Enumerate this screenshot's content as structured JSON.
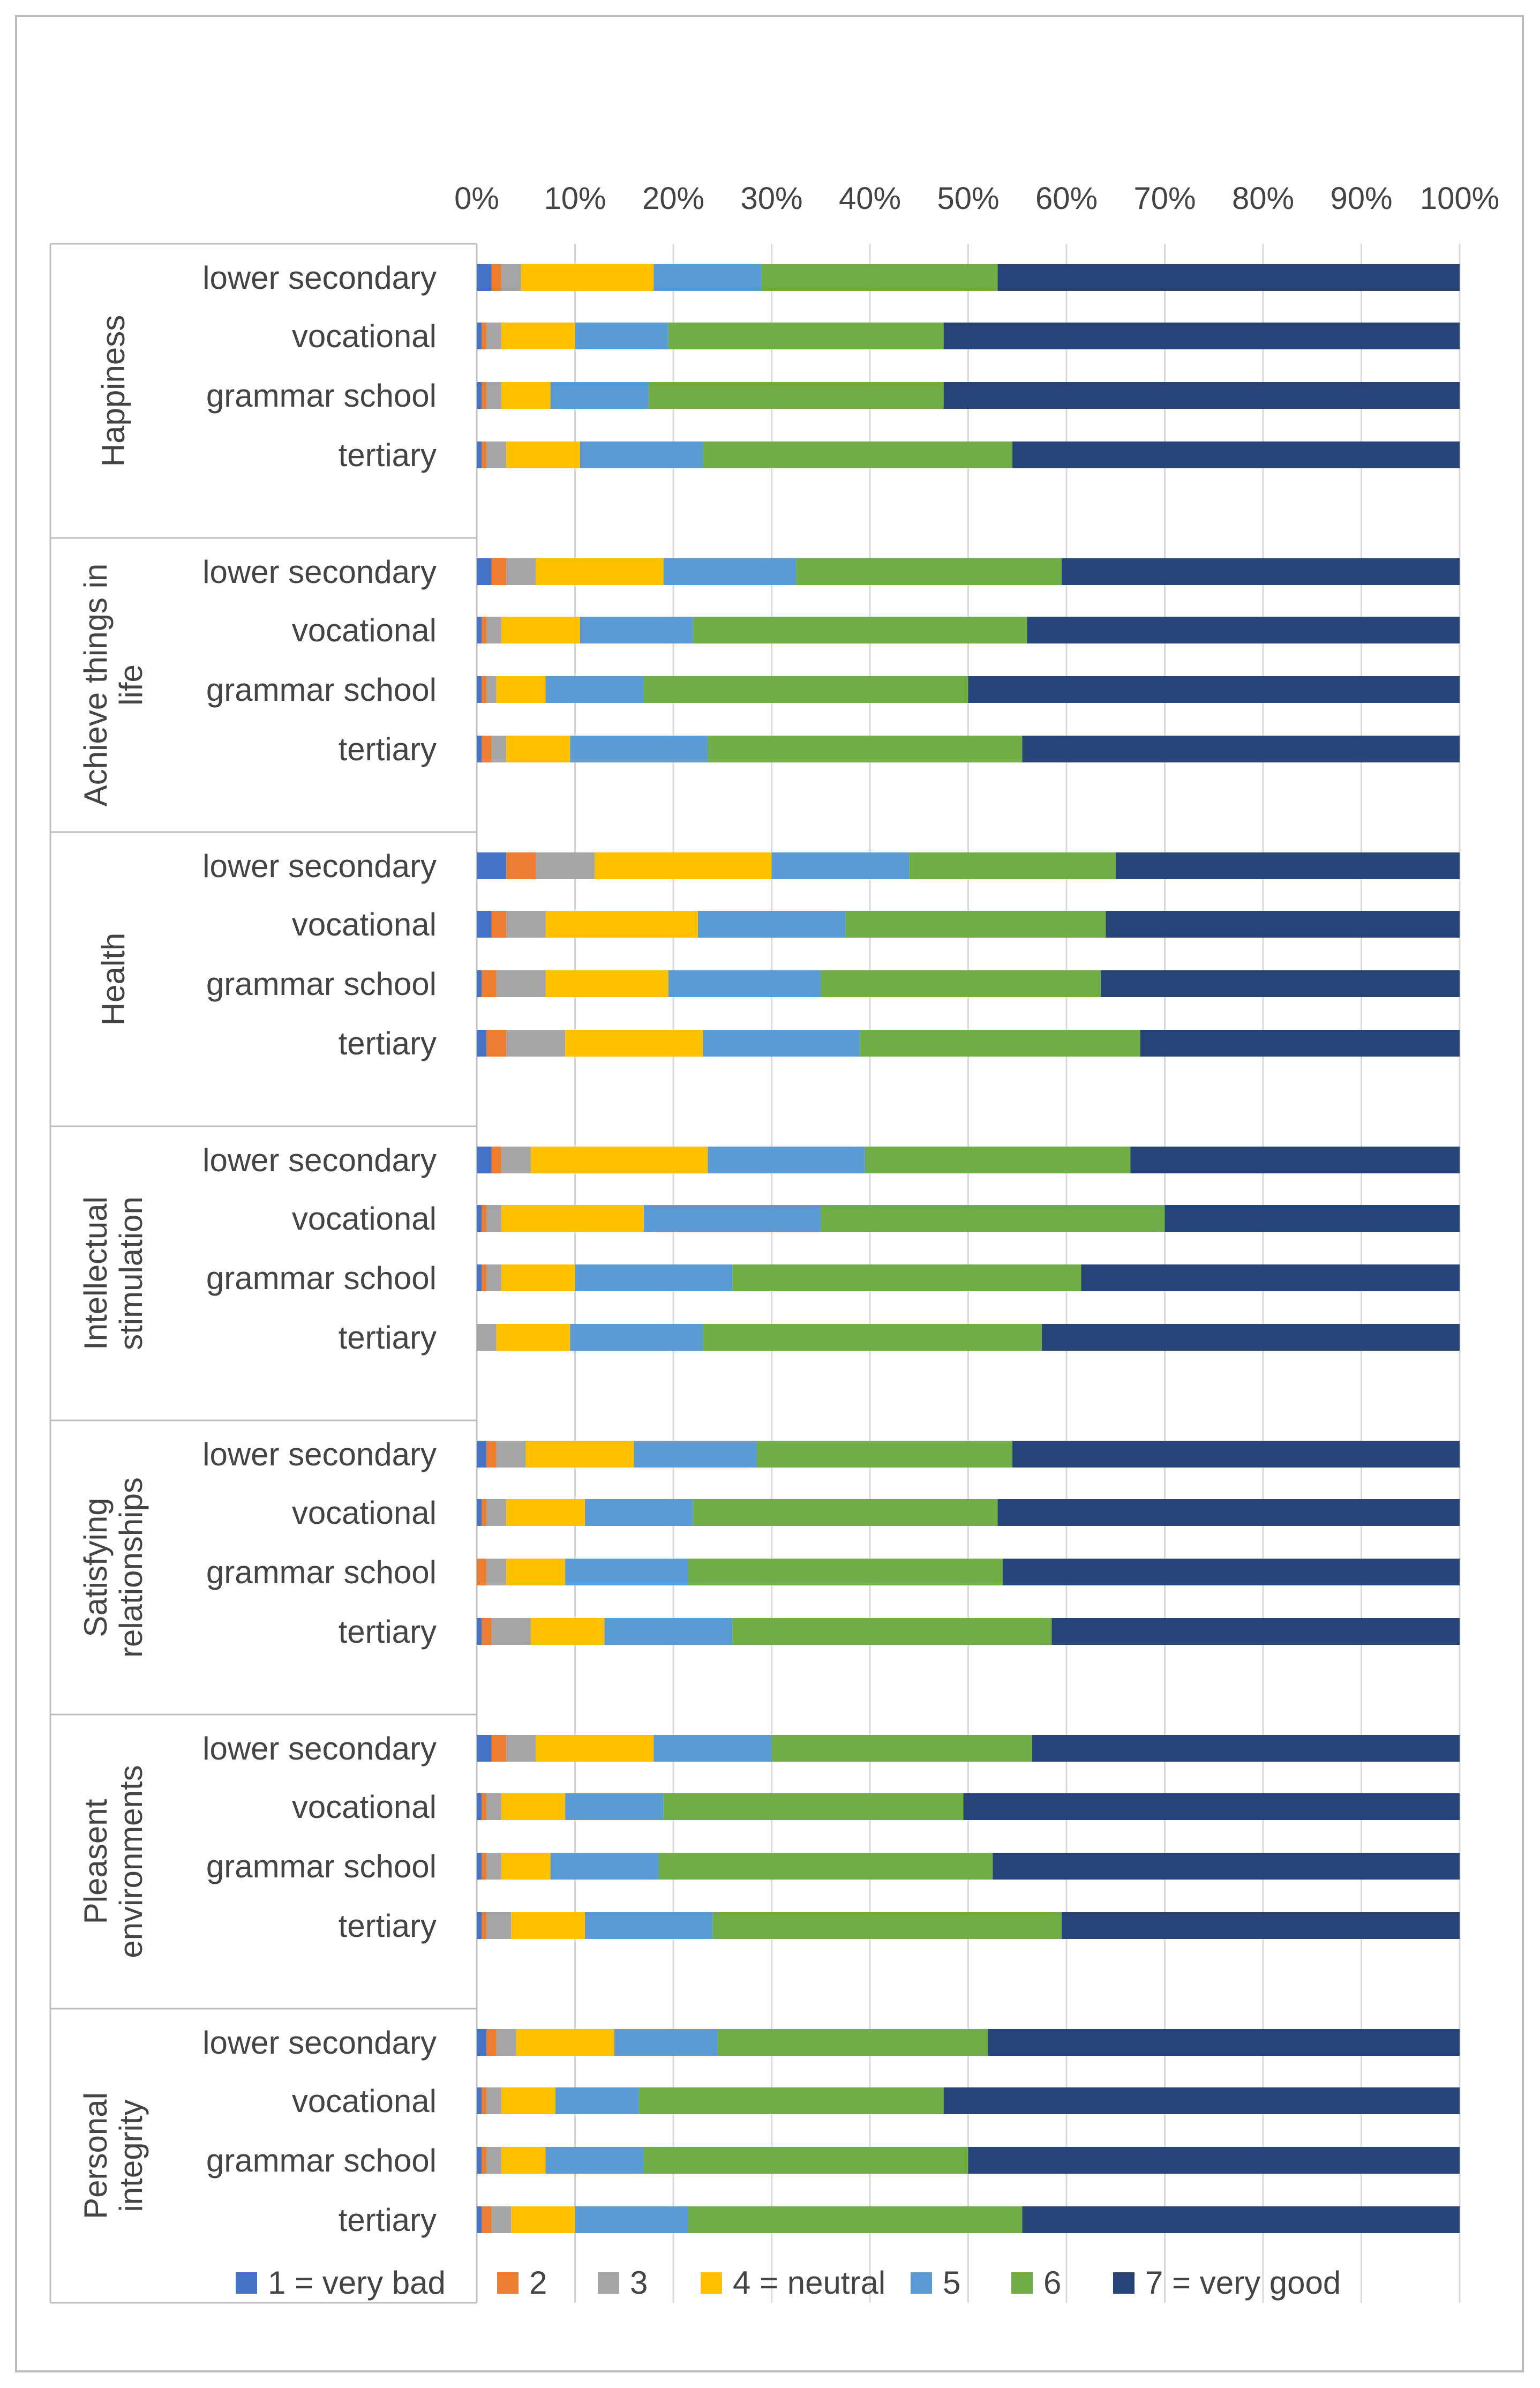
{
  "chart_data": {
    "type": "bar",
    "orientation": "horizontal",
    "stacked": "percent",
    "title": "",
    "xlabel": "",
    "ylabel": "",
    "xlim": [
      0,
      100
    ],
    "x_tick_labels": [
      "0%",
      "10%",
      "20%",
      "30%",
      "40%",
      "50%",
      "60%",
      "70%",
      "80%",
      "90%",
      "100%"
    ],
    "gridlines": true,
    "legend_position": "bottom",
    "series_names": [
      "1 = very bad",
      "2",
      "3",
      "4 = neutral",
      "5",
      "6",
      "7 = very good"
    ],
    "series_colors": [
      "#4472c4",
      "#ed7d31",
      "#a5a5a5",
      "#ffc000",
      "#5b9bd5",
      "#70ad47",
      "#264478"
    ],
    "groups": [
      {
        "label": "Happiness",
        "rows": [
          {
            "label": "lower secondary",
            "values": [
              1.5,
              1.0,
              2.0,
              13.5,
              11.0,
              24.0,
              47.0
            ]
          },
          {
            "label": "vocational",
            "values": [
              0.5,
              0.5,
              1.5,
              7.5,
              9.5,
              28.0,
              52.5
            ]
          },
          {
            "label": "grammar school",
            "values": [
              0.5,
              0.5,
              1.5,
              5.0,
              10.0,
              30.0,
              52.5
            ]
          },
          {
            "label": "tertiary",
            "values": [
              0.5,
              0.5,
              2.0,
              7.5,
              12.5,
              31.5,
              45.5
            ]
          }
        ]
      },
      {
        "label": "Achieve things in life",
        "rows": [
          {
            "label": "lower secondary",
            "values": [
              1.5,
              1.5,
              3.0,
              13.0,
              13.5,
              27.0,
              40.5
            ]
          },
          {
            "label": "vocational",
            "values": [
              0.5,
              0.5,
              1.5,
              8.0,
              11.5,
              34.0,
              44.0
            ]
          },
          {
            "label": "grammar school",
            "values": [
              0.5,
              0.5,
              1.0,
              5.0,
              10.0,
              33.0,
              50.0
            ]
          },
          {
            "label": "tertiary",
            "values": [
              0.5,
              1.0,
              1.5,
              6.5,
              14.0,
              32.0,
              44.5
            ]
          }
        ]
      },
      {
        "label": "Health",
        "rows": [
          {
            "label": "lower secondary",
            "values": [
              3.0,
              3.0,
              6.0,
              18.0,
              14.0,
              21.0,
              35.0
            ]
          },
          {
            "label": "vocational",
            "values": [
              1.5,
              1.5,
              4.0,
              15.5,
              15.0,
              26.5,
              36.0
            ]
          },
          {
            "label": "grammar school",
            "values": [
              0.5,
              1.5,
              5.0,
              12.5,
              15.5,
              28.5,
              36.5
            ]
          },
          {
            "label": "tertiary",
            "values": [
              1.0,
              2.0,
              6.0,
              14.0,
              16.0,
              28.5,
              32.5
            ]
          }
        ]
      },
      {
        "label": "Intellectual stimulation",
        "rows": [
          {
            "label": "lower secondary",
            "values": [
              1.5,
              1.0,
              3.0,
              18.0,
              16.0,
              27.0,
              33.5
            ]
          },
          {
            "label": "vocational",
            "values": [
              0.5,
              0.5,
              1.5,
              14.5,
              18.0,
              35.0,
              30.0
            ]
          },
          {
            "label": "grammar school",
            "values": [
              0.5,
              0.5,
              1.5,
              7.5,
              16.0,
              35.5,
              38.5
            ]
          },
          {
            "label": "tertiary",
            "values": [
              0.0,
              0.0,
              2.0,
              7.5,
              13.5,
              34.5,
              42.5
            ]
          }
        ]
      },
      {
        "label": "Satisfying relationships",
        "rows": [
          {
            "label": "lower secondary",
            "values": [
              1.0,
              1.0,
              3.0,
              11.0,
              12.5,
              26.0,
              45.5
            ]
          },
          {
            "label": "vocational",
            "values": [
              0.5,
              0.5,
              2.0,
              8.0,
              11.0,
              31.0,
              47.0
            ]
          },
          {
            "label": "grammar school",
            "values": [
              0.0,
              1.0,
              2.0,
              6.0,
              12.5,
              32.0,
              46.5
            ]
          },
          {
            "label": "tertiary",
            "values": [
              0.5,
              1.0,
              4.0,
              7.5,
              13.0,
              32.5,
              41.5
            ]
          }
        ]
      },
      {
        "label": "Pleasent environments",
        "rows": [
          {
            "label": "lower secondary",
            "values": [
              1.5,
              1.5,
              3.0,
              12.0,
              12.0,
              26.5,
              43.5
            ]
          },
          {
            "label": "vocational",
            "values": [
              0.5,
              0.5,
              1.5,
              6.5,
              10.0,
              30.5,
              50.5
            ]
          },
          {
            "label": "grammar school",
            "values": [
              0.5,
              0.5,
              1.5,
              5.0,
              11.0,
              34.0,
              47.5
            ]
          },
          {
            "label": "tertiary",
            "values": [
              0.5,
              0.5,
              2.5,
              7.5,
              13.0,
              35.5,
              40.5
            ]
          }
        ]
      },
      {
        "label": "Personal integrity",
        "rows": [
          {
            "label": "lower secondary",
            "values": [
              1.0,
              1.0,
              2.0,
              10.0,
              10.5,
              27.5,
              48.0
            ]
          },
          {
            "label": "vocational",
            "values": [
              0.5,
              0.5,
              1.5,
              5.5,
              8.5,
              31.0,
              52.5
            ]
          },
          {
            "label": "grammar school",
            "values": [
              0.5,
              0.5,
              1.5,
              4.5,
              10.0,
              33.0,
              50.0
            ]
          },
          {
            "label": "tertiary",
            "values": [
              0.5,
              1.0,
              2.0,
              6.5,
              11.5,
              34.0,
              44.5
            ]
          }
        ]
      }
    ]
  }
}
